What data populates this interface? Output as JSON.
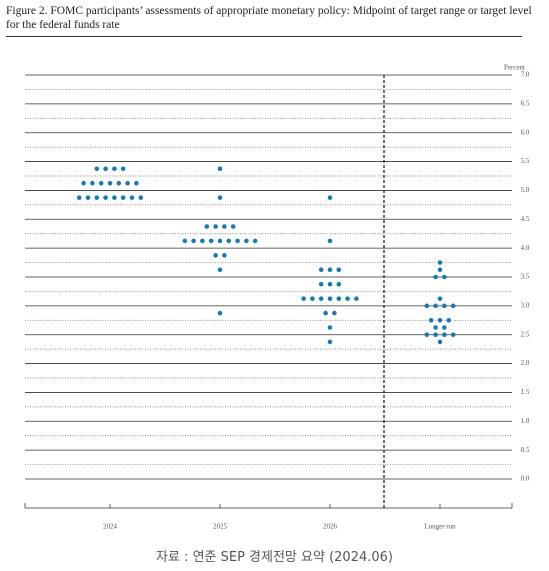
{
  "chart_data": {
    "type": "dot",
    "title": "Figure 2.  FOMC participants’ assessments of appropriate monetary policy:  Midpoint of target range or target level for the federal funds rate",
    "y_label": "Percent",
    "caption": "자료 : 연준 SEP 경제전망 요약 (2024.06)",
    "color": "#1b7aab",
    "categories": [
      "2024",
      "2025",
      "2026",
      "Longer run"
    ],
    "groups": [
      [
        {
          "y": 5.375,
          "count": 4
        },
        {
          "y": 5.125,
          "count": 7
        },
        {
          "y": 4.875,
          "count": 8
        }
      ],
      [
        {
          "y": 5.375,
          "count": 1
        },
        {
          "y": 4.875,
          "count": 1
        },
        {
          "y": 4.375,
          "count": 4
        },
        {
          "y": 4.125,
          "count": 9
        },
        {
          "y": 3.875,
          "count": 2
        },
        {
          "y": 3.625,
          "count": 1
        },
        {
          "y": 2.875,
          "count": 1
        }
      ],
      [
        {
          "y": 4.875,
          "count": 1
        },
        {
          "y": 4.125,
          "count": 1
        },
        {
          "y": 3.625,
          "count": 3
        },
        {
          "y": 3.375,
          "count": 3
        },
        {
          "y": 3.125,
          "count": 7
        },
        {
          "y": 2.875,
          "count": 2
        },
        {
          "y": 2.625,
          "count": 1
        },
        {
          "y": 2.375,
          "count": 1
        }
      ],
      [
        {
          "y": 3.75,
          "count": 1
        },
        {
          "y": 3.625,
          "count": 1
        },
        {
          "y": 3.5,
          "count": 2
        },
        {
          "y": 3.125,
          "count": 1
        },
        {
          "y": 3.0,
          "count": 4
        },
        {
          "y": 2.75,
          "count": 3
        },
        {
          "y": 2.625,
          "count": 2
        },
        {
          "y": 2.5,
          "count": 4
        },
        {
          "y": 2.375,
          "count": 1
        }
      ]
    ],
    "ylim": [
      0,
      7
    ],
    "yticks": [
      {
        "value": 0,
        "label": "0.0"
      },
      0.5,
      {
        "value": 1,
        "label": "1.0"
      },
      1.5,
      {
        "value": 2,
        "label": "2.0"
      },
      2.5,
      {
        "value": 3,
        "label": "3.0"
      },
      3.5,
      {
        "value": 4,
        "label": "4.0"
      },
      4.5,
      {
        "value": 5,
        "label": "5.0"
      },
      5.5,
      {
        "value": 6,
        "label": "6.0"
      },
      6.5,
      {
        "value": 7,
        "label": "7.0"
      }
    ],
    "grid": true
  }
}
